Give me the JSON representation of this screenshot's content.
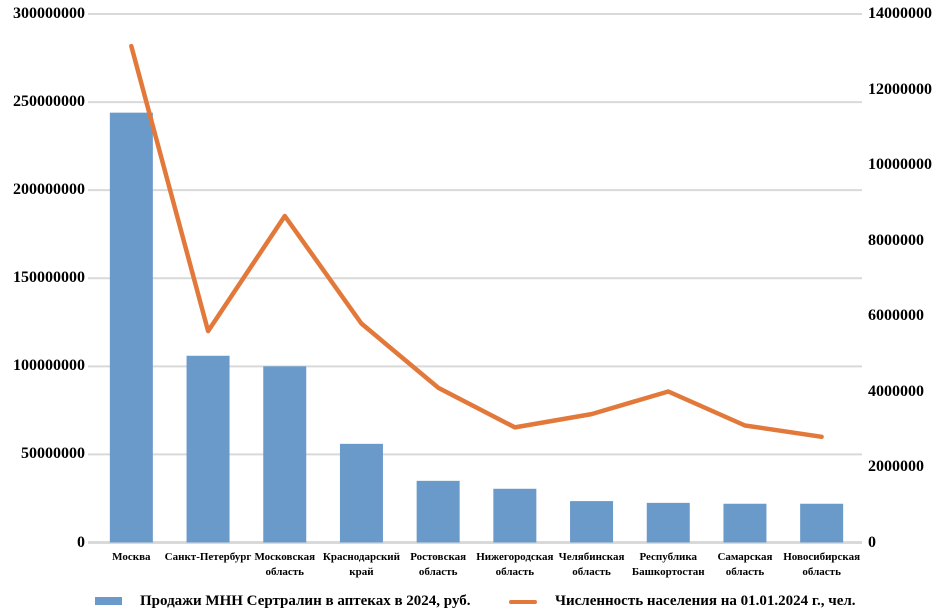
{
  "chart_data": {
    "type": "bar",
    "subtype": "combo-bar-line-dual-axis",
    "title": "",
    "xlabel": "",
    "ylabel": "",
    "grid": "horizontal",
    "gridline_color": "#D9D9D9",
    "background": "#FFFFFF",
    "legend_position": "bottom",
    "categories": [
      "Москва",
      "Санкт-Петербург",
      "Московская область",
      "Краснодарский край",
      "Ростовская область",
      "Нижегородская область",
      "Челябинская область",
      "Республика Башкортостан",
      "Самарская область",
      "Новосибирская область"
    ],
    "series": [
      {
        "name": "Продажи МНН Сертралин в аптеках в 2024, руб.",
        "type": "bar",
        "axis": "left",
        "color": "#6A9ACA",
        "values": [
          244000000,
          106000000,
          100000000,
          56000000,
          35000000,
          30500000,
          23500000,
          22500000,
          22000000,
          22000000
        ]
      },
      {
        "name": "Численность населения на 01.01.2024 г., чел.",
        "type": "line",
        "axis": "right",
        "color": "#E2793B",
        "values": [
          13150000,
          5600000,
          8650000,
          5800000,
          4100000,
          3050000,
          3400000,
          4000000,
          3100000,
          2800000
        ]
      }
    ],
    "left_axis": {
      "min": 0,
      "max": 300000000,
      "step": 50000000,
      "ticks": [
        "0",
        "50000000",
        "100000000",
        "150000000",
        "200000000",
        "250000000",
        "300000000"
      ]
    },
    "right_axis": {
      "min": 0,
      "max": 14000000,
      "step": 2000000,
      "ticks": [
        "0",
        "2000000",
        "4000000",
        "6000000",
        "8000000",
        "10000000",
        "12000000",
        "14000000"
      ]
    }
  }
}
